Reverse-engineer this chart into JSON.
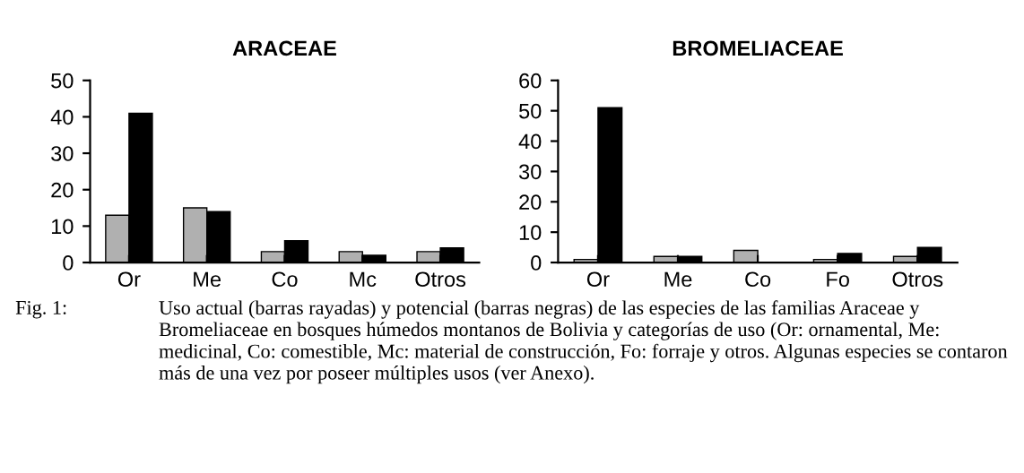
{
  "chart_data": [
    {
      "type": "bar",
      "title": "ARACEAE",
      "categories": [
        "Or",
        "Me",
        "Co",
        "Mc",
        "Otros"
      ],
      "series": [
        {
          "color": "#b0b0b0",
          "values": [
            13,
            15,
            3,
            3,
            3
          ]
        },
        {
          "color": "#000000",
          "values": [
            41,
            14,
            6,
            2,
            4
          ]
        }
      ],
      "ylim": [
        0,
        50
      ],
      "yticks": [
        0,
        10,
        20,
        30,
        40,
        50
      ],
      "grid": false,
      "legend": false,
      "annotations": [
        "Fig. 1:",
        "Uso actual (barras rayadas) y potencial (barras negras) de las especies de las familias Araceae y Bromeliaceae en bosques húmedos montanos de Bolivia y categorías de uso (Or: ornamental, Me: medicinal, Co: comestible, Mc: material de construcción, Fo: forraje y otros. Algunas especies se contaron más de una vez por poseer múltiples usos (ver Anexo)."
      ]
    },
    {
      "type": "bar",
      "title": "BROMELIACEAE",
      "categories": [
        "Or",
        "Me",
        "Co",
        "Fo",
        "Otros"
      ],
      "series": [
        {
          "color": "#b0b0b0",
          "values": [
            1,
            2,
            4,
            1,
            2
          ]
        },
        {
          "color": "#000000",
          "values": [
            51,
            2,
            0,
            3,
            5
          ]
        }
      ],
      "ylim": [
        0,
        60
      ],
      "yticks": [
        0,
        10,
        20,
        30,
        40,
        50,
        60
      ],
      "grid": false,
      "legend": false
    }
  ]
}
